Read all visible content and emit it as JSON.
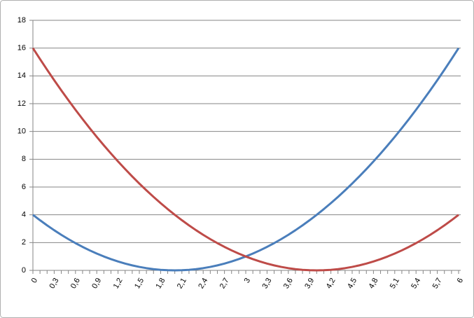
{
  "chart_data": {
    "type": "line",
    "categories": [
      "0",
      null,
      null,
      "0,3",
      null,
      null,
      "0,6",
      null,
      null,
      "0,9",
      null,
      null,
      "1,2",
      null,
      null,
      "1,5",
      null,
      null,
      "1,8",
      null,
      null,
      "2,1",
      null,
      null,
      "2,4",
      null,
      null,
      "2,7",
      null,
      null,
      "3",
      null,
      null,
      "3,3",
      null,
      null,
      "3,6",
      null,
      null,
      "3,9",
      null,
      null,
      "4,2",
      null,
      null,
      "4,5",
      null,
      null,
      "4,8",
      null,
      null,
      "5,1",
      null,
      null,
      "5,4",
      null,
      null,
      "5,7",
      null,
      null,
      "6"
    ],
    "series": [
      {
        "color": "#4a7ebb",
        "values": [
          4,
          3.61,
          3.24,
          2.89,
          2.56,
          2.25,
          1.96,
          1.69,
          1.44,
          1.21,
          1,
          0.81,
          0.64,
          0.49,
          0.36,
          0.25,
          0.16,
          0.09,
          0.04,
          0.01,
          0,
          0.01,
          0.04,
          0.09,
          0.16,
          0.25,
          0.36,
          0.49,
          0.64,
          0.81,
          1,
          1.21,
          1.44,
          1.69,
          1.96,
          2.25,
          2.56,
          2.89,
          3.24,
          3.61,
          4,
          4.41,
          4.84,
          5.29,
          5.76,
          6.25,
          6.76,
          7.29,
          7.84,
          8.41,
          9,
          9.61,
          10.24,
          10.89,
          11.56,
          12.25,
          12.96,
          13.69,
          14.44,
          15.21,
          16
        ]
      },
      {
        "color": "#be4b48",
        "values": [
          16,
          15.21,
          14.44,
          13.69,
          12.96,
          12.25,
          11.56,
          10.89,
          10.24,
          9.61,
          9,
          8.41,
          7.84,
          7.29,
          6.76,
          6.25,
          5.76,
          5.29,
          4.84,
          4.41,
          4,
          3.61,
          3.24,
          2.89,
          2.56,
          2.25,
          1.96,
          1.69,
          1.44,
          1.21,
          1,
          0.81,
          0.64,
          0.49,
          0.36,
          0.25,
          0.16,
          0.09,
          0.04,
          0.01,
          0,
          0.01,
          0.04,
          0.09,
          0.16,
          0.25,
          0.36,
          0.49,
          0.64,
          0.81,
          1,
          1.21,
          1.44,
          1.69,
          1.96,
          2.25,
          2.56,
          2.89,
          3.24,
          3.61,
          4
        ]
      }
    ],
    "ylim": [
      0,
      18
    ],
    "yticks": [
      0,
      2,
      4,
      6,
      8,
      10,
      12,
      14,
      16,
      18
    ],
    "grid": true
  }
}
